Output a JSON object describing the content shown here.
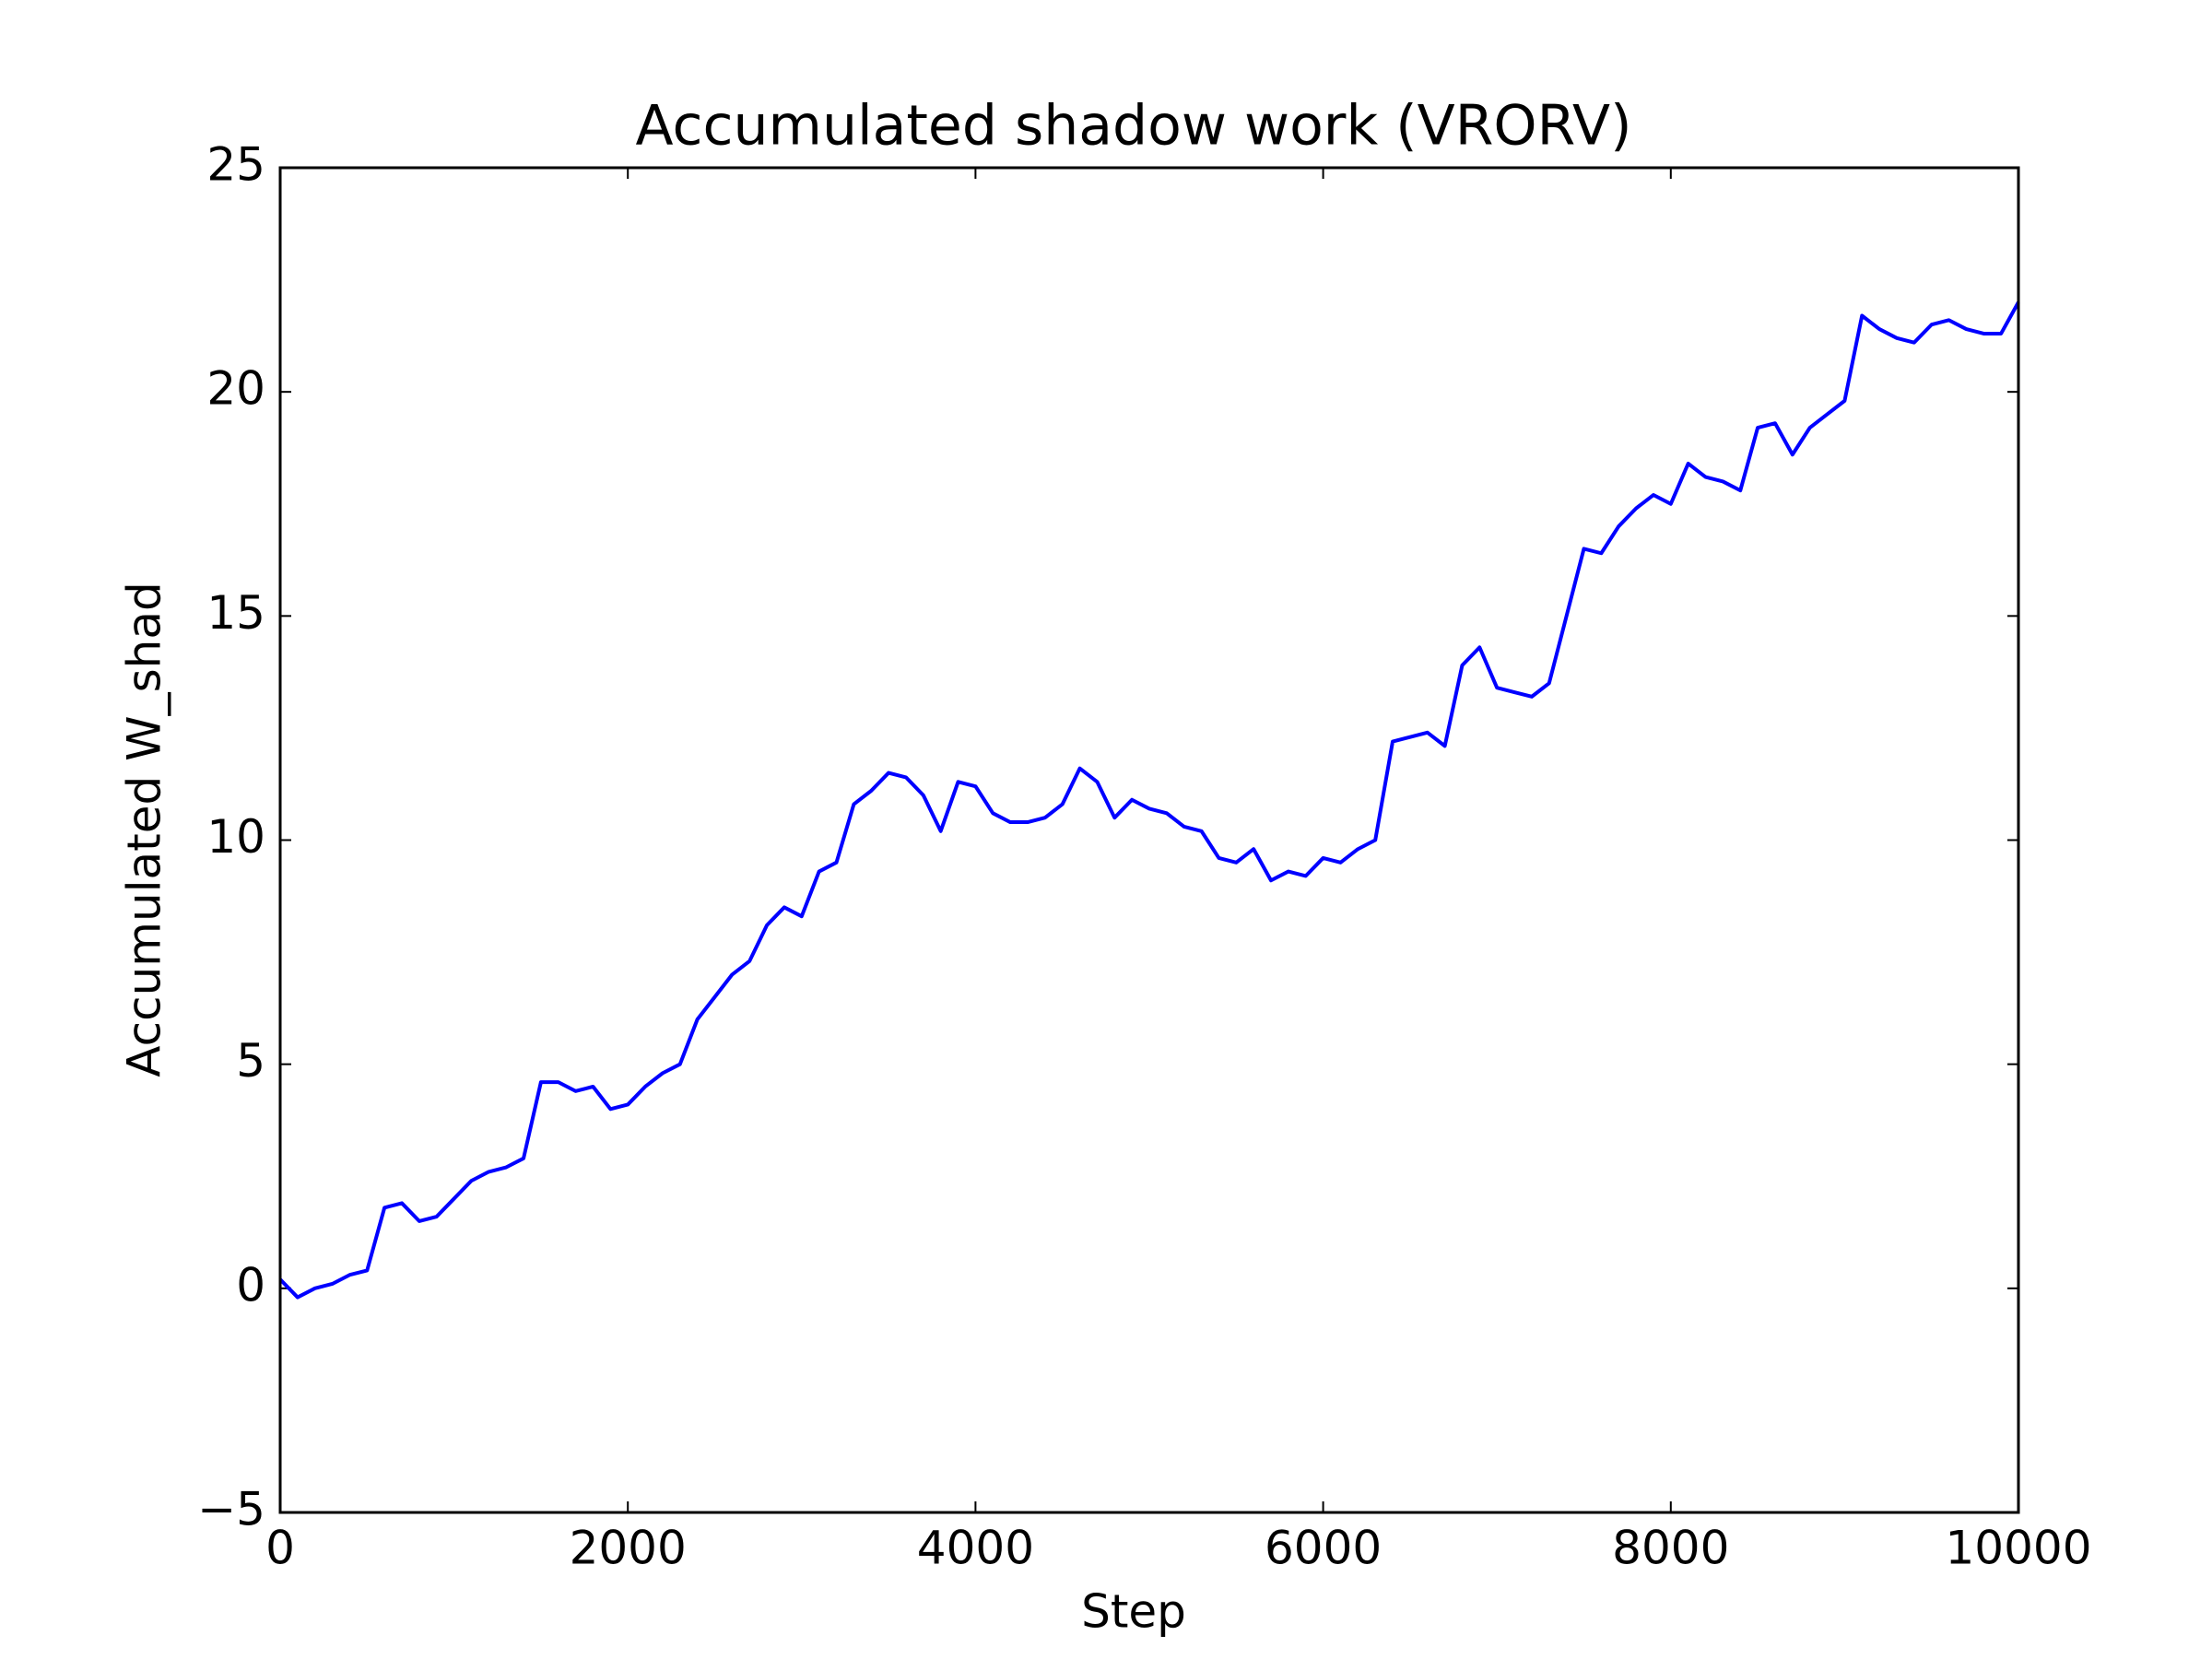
{
  "chart_data": {
    "type": "line",
    "title": "Accumulated shadow work (VRORV)",
    "xlabel": "Step",
    "ylabel": "Accumulated W_shad",
    "x": [
      0,
      100,
      200,
      300,
      400,
      500,
      600,
      700,
      800,
      900,
      1000,
      1100,
      1200,
      1300,
      1400,
      1500,
      1600,
      1700,
      1800,
      1900,
      2000,
      2100,
      2200,
      2300,
      2400,
      2500,
      2600,
      2700,
      2800,
      2900,
      3000,
      3100,
      3200,
      3300,
      3400,
      3500,
      3600,
      3700,
      3800,
      3900,
      4000,
      4100,
      4200,
      4300,
      4400,
      4500,
      4600,
      4700,
      4800,
      4900,
      5000,
      5100,
      5200,
      5300,
      5400,
      5500,
      5600,
      5700,
      5800,
      5900,
      6000,
      6100,
      6200,
      6300,
      6400,
      6500,
      6600,
      6700,
      6800,
      6900,
      7000,
      7100,
      7200,
      7300,
      7400,
      7500,
      7600,
      7700,
      7800,
      7900,
      8000,
      8100,
      8200,
      8300,
      8400,
      8500,
      8600,
      8700,
      8800,
      8900,
      9000,
      9100,
      9200,
      9300,
      9400,
      9500,
      9600,
      9700,
      9800,
      9900,
      10000
    ],
    "series": [
      {
        "name": "Accumulated W_shad",
        "color": "#0000ff",
        "values": [
          0.2,
          -0.2,
          0.0,
          0.1,
          0.3,
          0.4,
          1.8,
          1.9,
          1.5,
          1.6,
          2.0,
          2.4,
          2.6,
          2.7,
          2.9,
          4.6,
          4.6,
          4.4,
          4.5,
          4.0,
          4.1,
          4.5,
          4.8,
          5.0,
          6.0,
          6.5,
          7.0,
          7.3,
          8.1,
          8.5,
          8.3,
          9.3,
          9.5,
          10.8,
          11.1,
          11.5,
          11.4,
          11.0,
          10.2,
          11.3,
          11.2,
          10.6,
          10.4,
          10.4,
          10.5,
          10.8,
          11.6,
          11.3,
          10.5,
          10.9,
          10.7,
          10.6,
          10.3,
          10.2,
          9.6,
          9.5,
          9.8,
          9.1,
          9.3,
          9.2,
          9.6,
          9.5,
          9.8,
          10.0,
          12.2,
          12.3,
          12.4,
          12.1,
          13.9,
          14.3,
          13.4,
          13.3,
          13.2,
          13.5,
          15.0,
          16.5,
          16.4,
          17.0,
          17.4,
          17.7,
          17.5,
          18.4,
          18.1,
          18.0,
          17.8,
          19.2,
          19.3,
          18.6,
          19.2,
          19.5,
          19.8,
          21.7,
          21.4,
          21.2,
          21.1,
          21.5,
          21.6,
          21.4,
          21.3,
          21.3,
          22.0
        ]
      }
    ],
    "xlim": [
      0,
      10000
    ],
    "xticks": [
      0,
      2000,
      4000,
      6000,
      8000,
      10000
    ],
    "ylim": [
      -5,
      25
    ],
    "yticks": [
      {
        "value": -5,
        "label": "−5"
      },
      0,
      5,
      10,
      15,
      20,
      25
    ],
    "grid": false
  }
}
